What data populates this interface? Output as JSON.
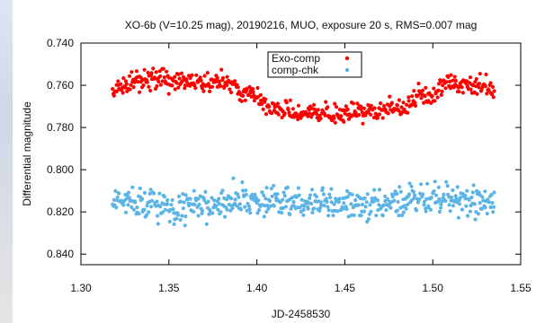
{
  "chart_data": {
    "type": "scatter",
    "title": "XO-6b (V=10.25 mag), 20190216, MUO, exposure 20 s, RMS=0.007 mag",
    "xlabel": "JD-2458530",
    "ylabel": "Differential magnitude",
    "xlim": [
      1.3,
      1.55
    ],
    "ylim": [
      0.845,
      0.74
    ],
    "y_inverted": true,
    "x_ticks": [
      "1.30",
      "1.35",
      "1.40",
      "1.45",
      "1.50",
      "1.55"
    ],
    "y_ticks": [
      "0.740",
      "0.760",
      "0.780",
      "0.800",
      "0.820",
      "0.840"
    ],
    "legend_position": "top-center",
    "grid": false,
    "series": [
      {
        "name": "Exo-comp",
        "color": "#ff0000",
        "x_range": [
          1.318,
          1.535
        ],
        "profile": [
          [
            1.318,
            0.762
          ],
          [
            1.34,
            0.757
          ],
          [
            1.36,
            0.759
          ],
          [
            1.38,
            0.758
          ],
          [
            1.395,
            0.764
          ],
          [
            1.41,
            0.771
          ],
          [
            1.43,
            0.774
          ],
          [
            1.46,
            0.773
          ],
          [
            1.48,
            0.771
          ],
          [
            1.495,
            0.766
          ],
          [
            1.51,
            0.76
          ],
          [
            1.535,
            0.761
          ]
        ],
        "scatter_mag": 0.0045
      },
      {
        "name": "comp-chk",
        "color": "#5bb4e5",
        "x_range": [
          1.318,
          1.535
        ],
        "profile": [
          [
            1.318,
            0.814
          ],
          [
            1.36,
            0.818
          ],
          [
            1.4,
            0.815
          ],
          [
            1.45,
            0.816
          ],
          [
            1.5,
            0.814
          ],
          [
            1.535,
            0.815
          ]
        ],
        "scatter_mag": 0.0075
      }
    ]
  }
}
